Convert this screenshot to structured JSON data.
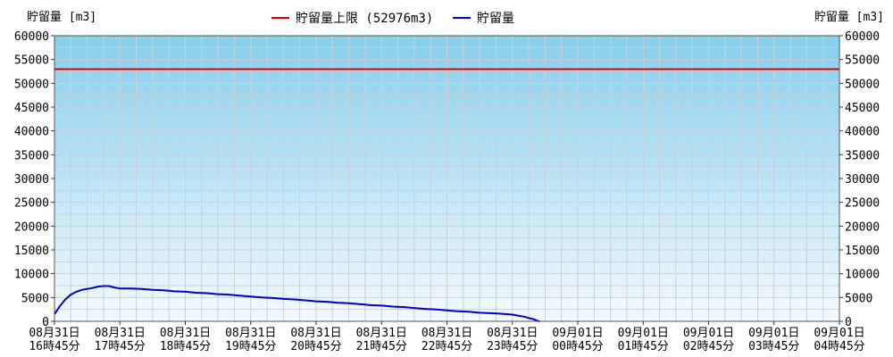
{
  "chart_data": {
    "type": "line",
    "ylabel_left": "貯留量 [m3]",
    "ylabel_right": "貯留量 [m3]",
    "ylim": [
      0,
      60000
    ],
    "y_ticks": [
      0,
      5000,
      10000,
      15000,
      20000,
      25000,
      30000,
      35000,
      40000,
      45000,
      50000,
      55000,
      60000
    ],
    "x_ticks": [
      {
        "t": 0,
        "date": "08月31日",
        "time": "16時45分"
      },
      {
        "t": 60,
        "date": "08月31日",
        "time": "17時45分"
      },
      {
        "t": 120,
        "date": "08月31日",
        "time": "18時45分"
      },
      {
        "t": 180,
        "date": "08月31日",
        "time": "19時45分"
      },
      {
        "t": 240,
        "date": "08月31日",
        "time": "20時45分"
      },
      {
        "t": 300,
        "date": "08月31日",
        "time": "21時45分"
      },
      {
        "t": 360,
        "date": "08月31日",
        "time": "22時45分"
      },
      {
        "t": 420,
        "date": "08月31日",
        "time": "23時45分"
      },
      {
        "t": 480,
        "date": "09月01日",
        "time": "00時45分"
      },
      {
        "t": 540,
        "date": "09月01日",
        "time": "01時45分"
      },
      {
        "t": 600,
        "date": "09月01日",
        "time": "02時45分"
      },
      {
        "t": 660,
        "date": "09月01日",
        "time": "03時45分"
      },
      {
        "t": 720,
        "date": "09月01日",
        "time": "04時45分"
      }
    ],
    "grid": true,
    "legend_position": "top-center",
    "series": [
      {
        "name": "貯留量上限 (52976m3)",
        "color": "#e00000",
        "style": "hline",
        "value": 52976
      },
      {
        "name": "貯留量",
        "color": "#0000cc",
        "style": "line",
        "points": [
          [
            0,
            1500
          ],
          [
            5,
            3200
          ],
          [
            10,
            4600
          ],
          [
            15,
            5600
          ],
          [
            20,
            6200
          ],
          [
            25,
            6600
          ],
          [
            30,
            6800
          ],
          [
            35,
            7000
          ],
          [
            40,
            7300
          ],
          [
            45,
            7400
          ],
          [
            50,
            7400
          ],
          [
            55,
            7100
          ],
          [
            60,
            6900
          ],
          [
            70,
            6900
          ],
          [
            80,
            6800
          ],
          [
            90,
            6600
          ],
          [
            100,
            6500
          ],
          [
            110,
            6300
          ],
          [
            120,
            6200
          ],
          [
            130,
            6000
          ],
          [
            140,
            5900
          ],
          [
            150,
            5700
          ],
          [
            160,
            5600
          ],
          [
            170,
            5400
          ],
          [
            180,
            5200
          ],
          [
            190,
            5000
          ],
          [
            200,
            4900
          ],
          [
            210,
            4700
          ],
          [
            220,
            4600
          ],
          [
            230,
            4400
          ],
          [
            240,
            4200
          ],
          [
            250,
            4100
          ],
          [
            260,
            3900
          ],
          [
            270,
            3800
          ],
          [
            280,
            3600
          ],
          [
            290,
            3400
          ],
          [
            300,
            3300
          ],
          [
            310,
            3100
          ],
          [
            320,
            3000
          ],
          [
            330,
            2800
          ],
          [
            340,
            2600
          ],
          [
            350,
            2500
          ],
          [
            360,
            2300
          ],
          [
            370,
            2100
          ],
          [
            380,
            2000
          ],
          [
            390,
            1800
          ],
          [
            400,
            1700
          ],
          [
            410,
            1600
          ],
          [
            420,
            1400
          ],
          [
            425,
            1200
          ],
          [
            430,
            1000
          ],
          [
            435,
            700
          ],
          [
            440,
            400
          ],
          [
            443,
            100
          ],
          [
            445,
            0
          ]
        ]
      }
    ]
  },
  "colors": {
    "plot_bg_top": "#87ceeb",
    "plot_bg_bottom": "#f4faff",
    "grid": "#c8d0d8"
  }
}
